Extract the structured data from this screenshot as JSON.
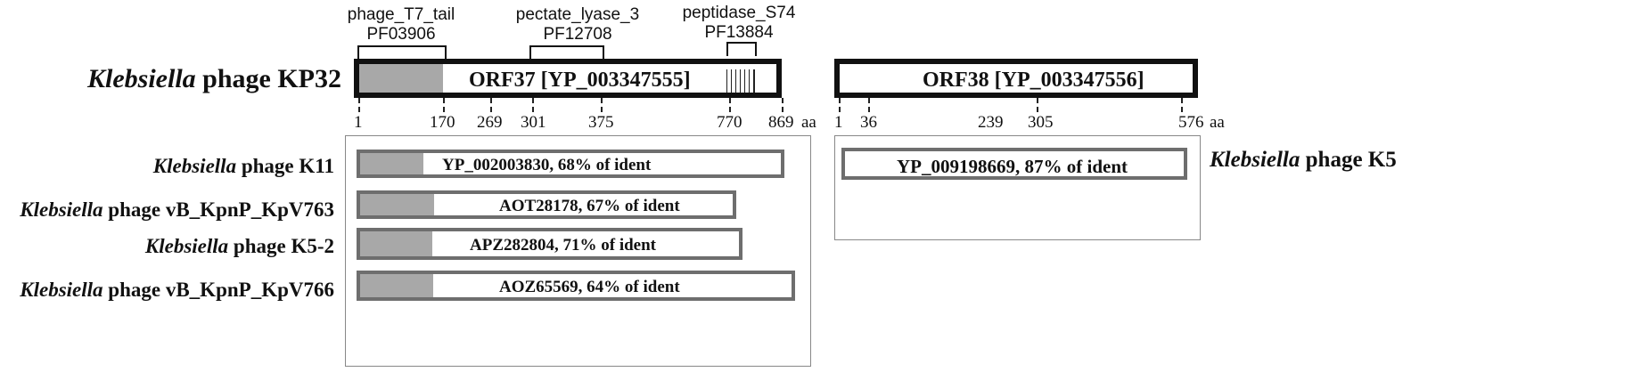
{
  "domains": [
    {
      "name": "phage_T7_tail",
      "id": "PF03906"
    },
    {
      "name": "pectate_lyase_3",
      "id": "PF12708"
    },
    {
      "name": "peptidase_S74",
      "id": "PF13884"
    }
  ],
  "main_phage": {
    "genus": "Klebsiella",
    "rest": " phage KP32"
  },
  "orf37": {
    "label": "ORF37 [YP_003347555]"
  },
  "orf38": {
    "label": "ORF38 [YP_003347556]"
  },
  "ticks_orf37": [
    "1",
    "170",
    "269",
    "301",
    "375",
    "770",
    "869"
  ],
  "ticks_orf38": [
    "1",
    "36",
    "239",
    "305",
    "576"
  ],
  "aa_unit": "aa",
  "hits_left": [
    {
      "genus": "Klebsiella",
      "rest": " phage  K11",
      "label": "YP_002003830, 68% of ident"
    },
    {
      "genus": "Klebsiella",
      "rest": " phage vB_KpnP_KpV763",
      "label": "AOT28178, 67% of ident"
    },
    {
      "genus": "Klebsiella",
      "rest": " phage K5-2",
      "label": "APZ282804, 71% of ident"
    },
    {
      "genus": "Klebsiella",
      "rest": " phage vB_KpnP_KpV766",
      "label": "AOZ65569, 64% of ident"
    }
  ],
  "hit_right": {
    "genus": "Klebsiella",
    "rest": " phage K5",
    "label": "YP_009198669, 87% of ident"
  }
}
